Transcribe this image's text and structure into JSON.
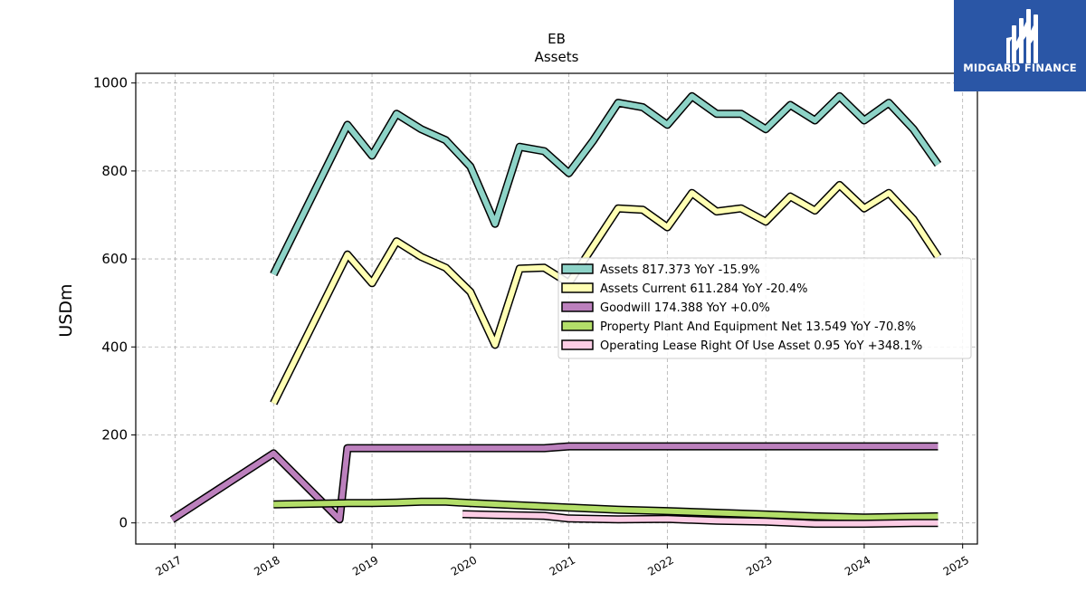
{
  "logo": {
    "text": "MIDGARD FINANCE",
    "background": "#2a56a6"
  },
  "chart_data": {
    "type": "line",
    "title": "EB",
    "subtitle": "Assets",
    "xlabel": "",
    "ylabel": "USDm",
    "xlim": [
      2016.6,
      2025.15
    ],
    "ylim": [
      -48,
      1022
    ],
    "x_ticks": [
      2017,
      2018,
      2019,
      2020,
      2021,
      2022,
      2023,
      2024,
      2025
    ],
    "x_tick_labels": [
      "2017",
      "2018",
      "2019",
      "2020",
      "2021",
      "2022",
      "2023",
      "2024",
      "2025"
    ],
    "y_ticks": [
      0,
      200,
      400,
      600,
      800,
      1000
    ],
    "y_tick_labels": [
      "0",
      "200",
      "400",
      "600",
      "800",
      "1000"
    ],
    "grid": true,
    "legend_position": "center-right",
    "series": [
      {
        "name": "Assets",
        "legend_label": "Assets  817.373 YoY -15.9%",
        "color": "#8dd3c7",
        "x": [
          2018.0,
          2018.75,
          2019.0,
          2019.25,
          2019.5,
          2019.75,
          2020.0,
          2020.25,
          2020.5,
          2020.75,
          2021.0,
          2021.25,
          2021.5,
          2021.75,
          2022.0,
          2022.25,
          2022.5,
          2022.75,
          2023.0,
          2023.25,
          2023.5,
          2023.75,
          2024.0,
          2024.25,
          2024.5,
          2024.75
        ],
        "y": [
          565,
          905,
          835,
          930,
          895,
          870,
          810,
          680,
          855,
          845,
          795,
          870,
          955,
          945,
          905,
          970,
          930,
          930,
          895,
          950,
          915,
          970,
          915,
          955,
          895,
          815
        ]
      },
      {
        "name": "Assets Current",
        "legend_label": "Assets Current  611.284 YoY -20.4%",
        "color": "#ffffb3",
        "x": [
          2018.0,
          2018.75,
          2019.0,
          2019.25,
          2019.5,
          2019.75,
          2020.0,
          2020.25,
          2020.5,
          2020.75,
          2021.0,
          2021.25,
          2021.5,
          2021.75,
          2022.0,
          2022.25,
          2022.5,
          2022.75,
          2023.0,
          2023.25,
          2023.5,
          2023.75,
          2024.0,
          2024.25,
          2024.5,
          2024.75
        ],
        "y": [
          272,
          610,
          545,
          640,
          605,
          580,
          525,
          405,
          578,
          580,
          545,
          630,
          715,
          712,
          672,
          750,
          708,
          715,
          685,
          742,
          710,
          768,
          715,
          750,
          690,
          605
        ]
      },
      {
        "name": "Goodwill",
        "legend_label": "Goodwill  174.388 YoY +0.0%",
        "color": "#bc80bd",
        "x": [
          2016.97,
          2018.0,
          2018.67,
          2018.75,
          2019.0,
          2019.25,
          2019.5,
          2019.75,
          2020.0,
          2020.25,
          2020.5,
          2020.75,
          2021.0,
          2021.25,
          2021.5,
          2021.75,
          2022.0,
          2022.25,
          2022.5,
          2022.75,
          2023.0,
          2023.25,
          2023.5,
          2023.75,
          2024.0,
          2024.25,
          2024.5,
          2024.75
        ],
        "y": [
          8,
          158,
          8,
          170,
          170,
          170,
          170,
          170,
          170,
          170,
          170,
          170,
          174,
          174,
          174,
          174,
          174,
          174,
          174,
          174,
          174,
          174,
          174,
          174,
          174,
          174,
          174,
          174
        ]
      },
      {
        "name": "Property Plant And Equipment Net",
        "legend_label": "Property Plant And Equipment Net  13.549 YoY -70.8%",
        "color": "#b3de69",
        "x": [
          2018.0,
          2018.75,
          2019.0,
          2019.25,
          2019.5,
          2019.75,
          2020.0,
          2020.5,
          2021.0,
          2021.5,
          2022.0,
          2022.5,
          2023.0,
          2023.5,
          2024.0,
          2024.5,
          2024.75
        ],
        "y": [
          42,
          45,
          45,
          46,
          48,
          48,
          45,
          40,
          35,
          30,
          27,
          23,
          19,
          15,
          12,
          14,
          15
        ]
      },
      {
        "name": "Operating Lease Right Of Use Asset",
        "legend_label": "Operating Lease Right Of Use Asset  0.95 YoY +348.1%",
        "color": "#fccde5",
        "x": [
          2019.92,
          2020.25,
          2020.75,
          2021.0,
          2021.5,
          2022.0,
          2022.5,
          2023.0,
          2023.5,
          2024.0,
          2024.5,
          2024.75
        ],
        "y": [
          20,
          18,
          16,
          10,
          8,
          9,
          5,
          3,
          -2,
          -2,
          0,
          0
        ]
      }
    ]
  }
}
